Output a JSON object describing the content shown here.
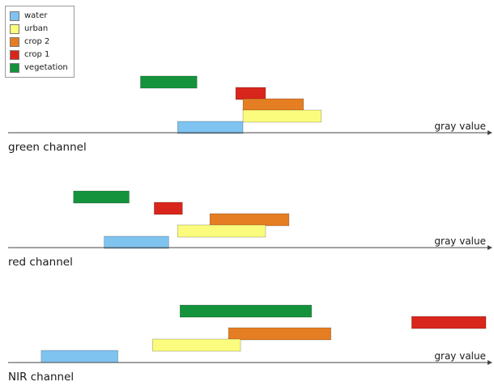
{
  "legend": {
    "items": [
      {
        "key": "water",
        "label": "water",
        "color": "#7fc3f0"
      },
      {
        "key": "urban",
        "label": "urban",
        "color": "#fbfb7e"
      },
      {
        "key": "crop2",
        "label": "crop 2",
        "color": "#e57d22"
      },
      {
        "key": "crop1",
        "label": "crop 1",
        "color": "#d9261c"
      },
      {
        "key": "vegetation",
        "label": "vegetation",
        "color": "#14933c"
      }
    ]
  },
  "chart_data": [
    {
      "type": "range-bar",
      "title": "green channel",
      "axis_label": "gray value",
      "xlim": [
        0,
        600
      ],
      "bars": [
        {
          "class": "vegetation",
          "range": [
            164,
            234
          ]
        },
        {
          "class": "crop1",
          "range": [
            282,
            319
          ]
        },
        {
          "class": "crop2",
          "range": [
            291,
            366
          ]
        },
        {
          "class": "urban",
          "range": [
            291,
            388
          ]
        },
        {
          "class": "water",
          "range": [
            210,
            291
          ]
        }
      ]
    },
    {
      "type": "range-bar",
      "title": "red channel",
      "axis_label": "gray value",
      "xlim": [
        0,
        600
      ],
      "bars": [
        {
          "class": "vegetation",
          "range": [
            81,
            150
          ]
        },
        {
          "class": "crop1",
          "range": [
            181,
            216
          ]
        },
        {
          "class": "crop2",
          "range": [
            250,
            348
          ]
        },
        {
          "class": "urban",
          "range": [
            210,
            319
          ]
        },
        {
          "class": "water",
          "range": [
            119,
            199
          ]
        }
      ]
    },
    {
      "type": "range-bar",
      "title": "NIR channel",
      "axis_label": "gray value",
      "xlim": [
        0,
        600
      ],
      "bars": [
        {
          "class": "vegetation",
          "range": [
            213,
            376
          ]
        },
        {
          "class": "crop1",
          "range": [
            500,
            592
          ]
        },
        {
          "class": "crop2",
          "range": [
            273,
            400
          ]
        },
        {
          "class": "urban",
          "range": [
            179,
            288
          ]
        },
        {
          "class": "water",
          "range": [
            41,
            136
          ]
        }
      ]
    }
  ]
}
